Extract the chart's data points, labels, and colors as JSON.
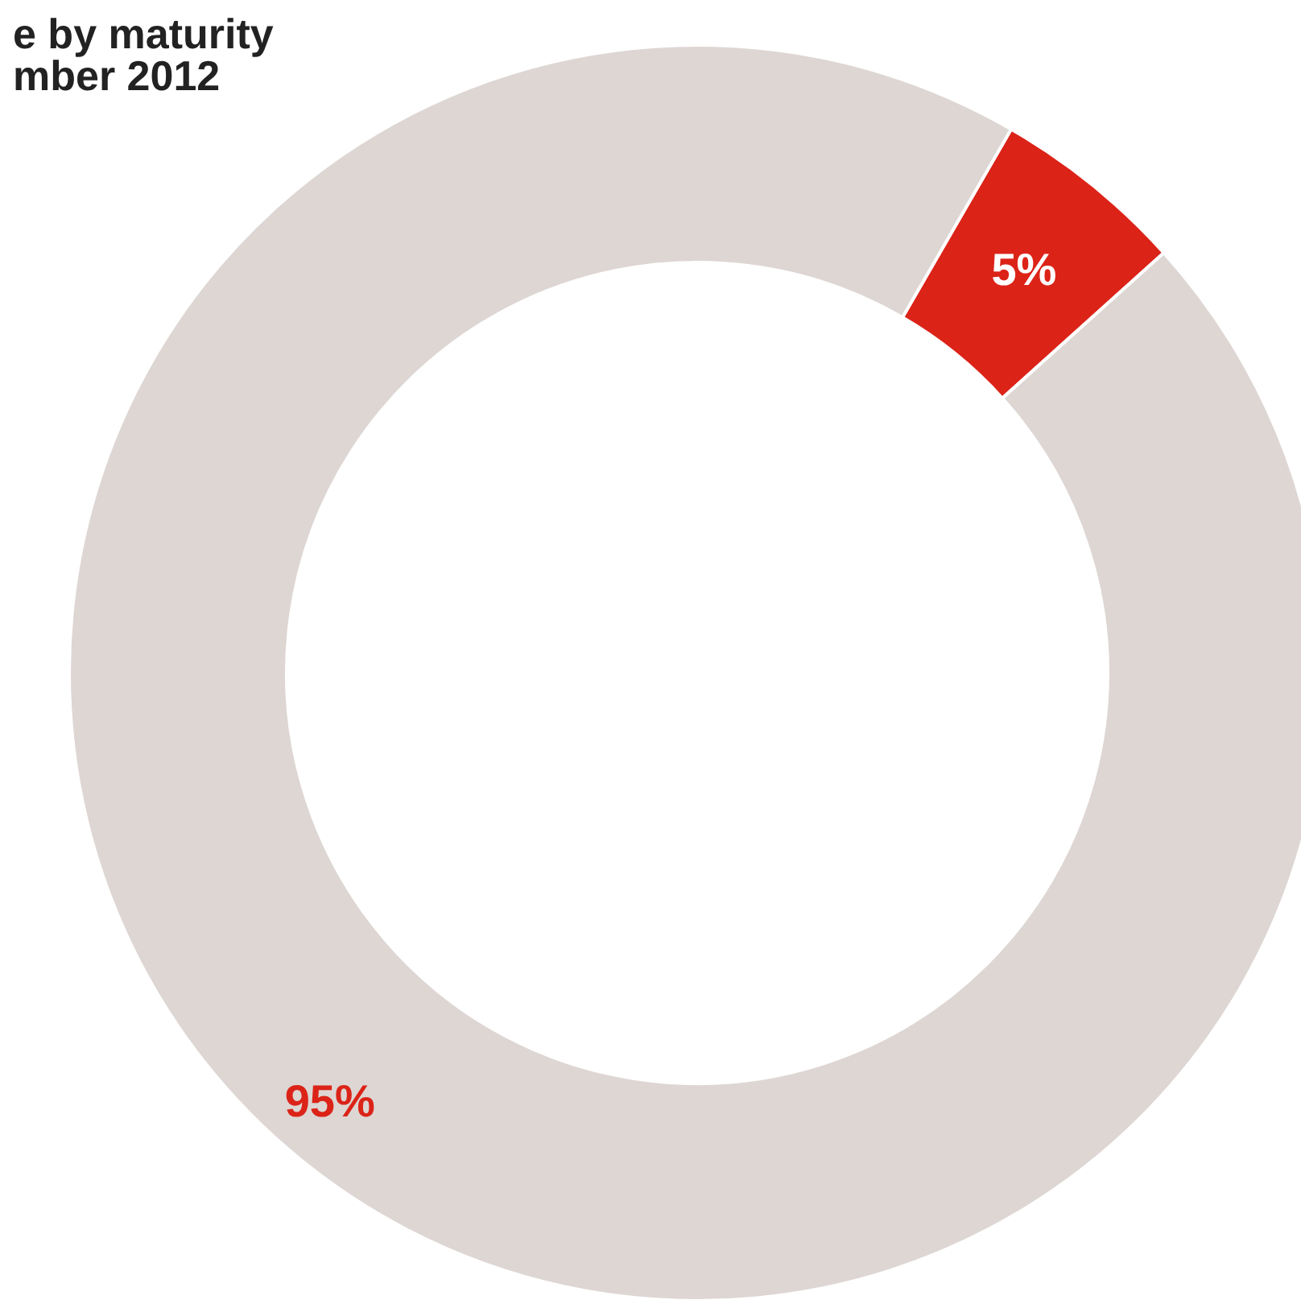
{
  "chart_data": {
    "type": "donut",
    "title": "e by maturity",
    "subtitle": "mber 2012",
    "categories": [
      null,
      null
    ],
    "values": [
      5,
      95
    ],
    "colors": [
      "#dc2318",
      "#ddd6d3"
    ],
    "value_labels": [
      "5%",
      "95%"
    ]
  }
}
